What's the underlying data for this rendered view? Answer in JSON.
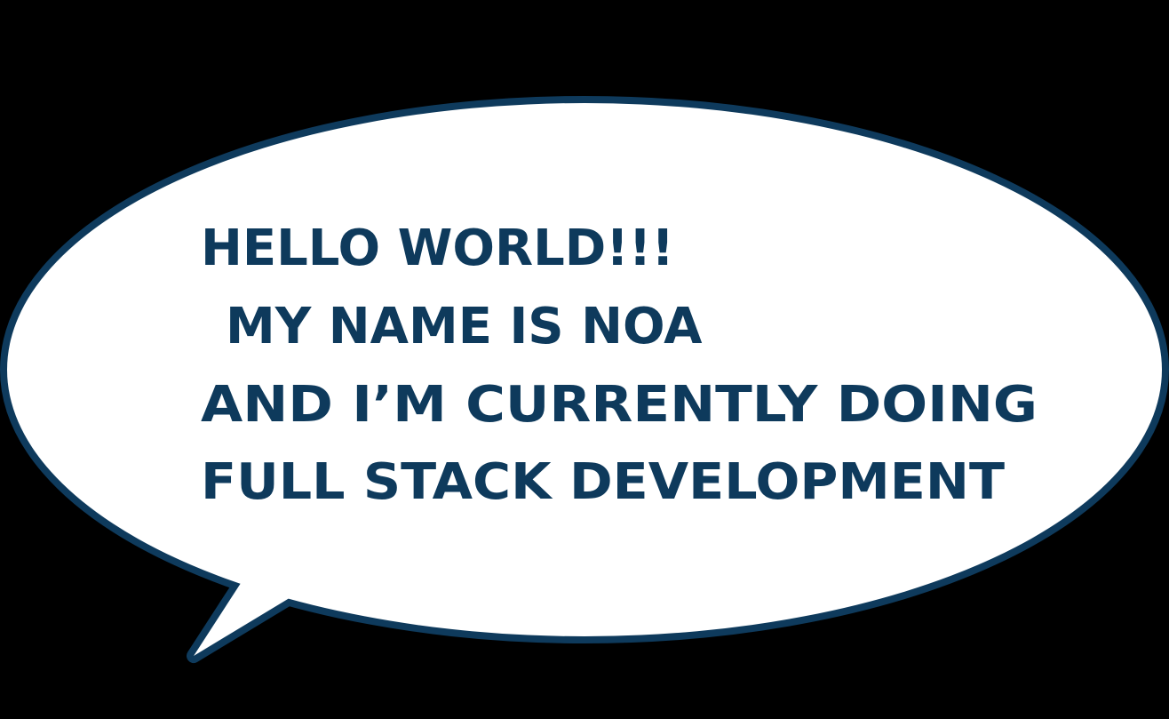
{
  "bubble": {
    "lines": [
      "HELLO WORLD!!!",
      "MY NAME IS NOA",
      "AND I’M CURRENTLY DOING",
      "FULL STACK DEVELOPMENT"
    ]
  }
}
